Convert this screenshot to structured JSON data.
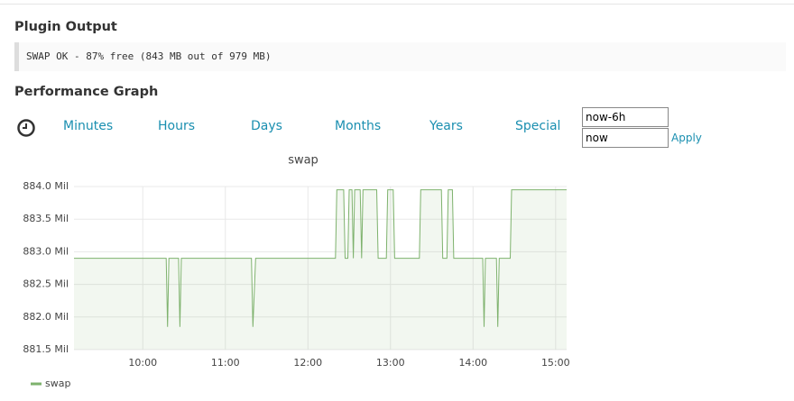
{
  "header": {
    "plugin_title": "Plugin Output",
    "plugin_output": "SWAP OK - 87% free (843 MB out of 979 MB)",
    "graph_title": "Performance Graph"
  },
  "nav": {
    "links": [
      "Minutes",
      "Hours",
      "Days",
      "Months",
      "Years",
      "Special"
    ],
    "from": "now-6h",
    "to": "now",
    "apply": "Apply"
  },
  "chart_data": {
    "type": "line",
    "title": "swap",
    "x": [
      "09:10",
      "10:17",
      "10:18",
      "10:19",
      "10:26",
      "10:27",
      "10:28",
      "11:19",
      "11:20",
      "11:22",
      "12:20",
      "12:21",
      "12:26",
      "12:27",
      "12:29",
      "12:30",
      "12:32",
      "12:33",
      "12:34",
      "12:38",
      "12:39",
      "12:40",
      "12:50",
      "12:51",
      "12:57",
      "12:58",
      "13:02",
      "13:03",
      "13:21",
      "13:22",
      "13:37",
      "13:38",
      "13:41",
      "13:42",
      "13:45",
      "13:46",
      "14:07",
      "14:08",
      "14:09",
      "14:17",
      "14:18",
      "14:19",
      "14:27",
      "14:28",
      "15:08"
    ],
    "series": [
      {
        "name": "swap",
        "color": "#7eb26d",
        "values": [
          882.9,
          882.9,
          881.85,
          882.9,
          882.9,
          881.85,
          882.9,
          882.9,
          881.85,
          882.9,
          882.9,
          883.95,
          883.95,
          882.9,
          882.9,
          883.95,
          883.95,
          882.9,
          883.95,
          883.95,
          882.9,
          883.95,
          883.95,
          882.9,
          882.9,
          883.95,
          883.95,
          882.9,
          882.9,
          883.95,
          883.95,
          882.9,
          882.9,
          883.95,
          883.95,
          882.9,
          882.9,
          881.85,
          882.9,
          882.9,
          881.85,
          882.9,
          882.9,
          883.95,
          883.95
        ]
      }
    ],
    "xlim": [
      "09:10",
      "15:08"
    ],
    "xticks": [
      "10:00",
      "11:00",
      "12:00",
      "13:00",
      "14:00",
      "15:00"
    ],
    "ylim": [
      881.5,
      884.0
    ],
    "yticks": [
      {
        "value": 881.5,
        "label": "881.5 Mil"
      },
      {
        "value": 882.0,
        "label": "882.0 Mil"
      },
      {
        "value": 882.5,
        "label": "882.5 Mil"
      },
      {
        "value": 883.0,
        "label": "883.0 Mil"
      },
      {
        "value": 883.5,
        "label": "883.5 Mil"
      },
      {
        "value": 884.0,
        "label": "884.0 Mil"
      }
    ],
    "grid": true
  }
}
